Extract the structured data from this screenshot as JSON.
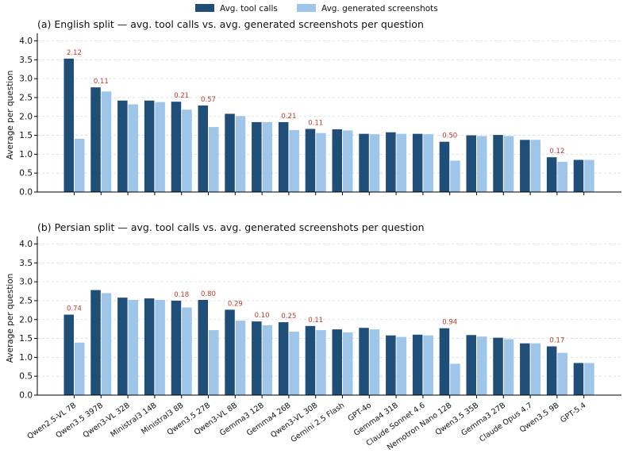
{
  "legend": [
    {
      "label": "Avg. tool calls",
      "color": "#1f4e79"
    },
    {
      "label": "Avg. generated screenshots",
      "color": "#9fc5e8"
    }
  ],
  "chart_data": [
    {
      "type": "bar",
      "title": "(a) English split — avg. tool calls vs. avg. generated screenshots per question",
      "ylabel": "Average per question",
      "ylim": [
        0,
        4.2
      ],
      "yticks": [
        "0.0",
        "0.5",
        "1.0",
        "1.5",
        "2.0",
        "2.5",
        "3.0",
        "3.5",
        "4.0"
      ],
      "grid": "horizontal dashed",
      "categories": [
        "Qwen2.5-VL 7B",
        "Qwen3.5 397B",
        "Qwen3-VL 32B",
        "Ministral3 14B",
        "Ministral3 8B",
        "Qwen3.5 27B",
        "Qwen3-VL 8B",
        "Gemma3 12B",
        "Gemma4 26B",
        "Qwen3-VL 30B",
        "Gemini 2.5 Flash",
        "GPT-4o",
        "Gemma4 31B",
        "Claude Sonnet 4.6",
        "Nemotron Nano 12B",
        "Qwen3.5 35B",
        "Gemma3 27B",
        "Claude Opus 4.7",
        "Qwen3.5 9B",
        "GPT-5.4"
      ],
      "series": [
        {
          "name": "Avg. tool calls",
          "values": [
            3.53,
            2.77,
            2.42,
            2.42,
            2.39,
            2.29,
            2.07,
            1.85,
            1.85,
            1.67,
            1.66,
            1.54,
            1.58,
            1.54,
            1.33,
            1.5,
            1.51,
            1.38,
            0.92,
            0.85
          ]
        },
        {
          "name": "Avg. generated screenshots",
          "values": [
            1.41,
            2.66,
            2.32,
            2.38,
            2.18,
            1.72,
            2.01,
            1.85,
            1.64,
            1.56,
            1.63,
            1.53,
            1.54,
            1.53,
            0.83,
            1.48,
            1.48,
            1.38,
            0.8,
            0.85
          ]
        }
      ],
      "annotations": [
        "2.12",
        "0.11",
        "",
        "",
        "0.21",
        "0.57",
        "",
        "",
        "0.21",
        "0.11",
        "",
        "",
        "",
        "",
        "0.50",
        "",
        "",
        "",
        "0.12",
        ""
      ]
    },
    {
      "type": "bar",
      "title": "(b) Persian split — avg. tool calls vs. avg. generated screenshots per question",
      "ylabel": "Average per question",
      "ylim": [
        0,
        4.2
      ],
      "yticks": [
        "0.0",
        "0.5",
        "1.0",
        "1.5",
        "2.0",
        "2.5",
        "3.0",
        "3.5",
        "4.0"
      ],
      "grid": "horizontal dashed",
      "categories": [
        "Qwen2.5-VL 7B",
        "Qwen3.5 397B",
        "Qwen3-VL 32B",
        "Ministral3 14B",
        "Ministral3 8B",
        "Qwen3.5 27B",
        "Qwen3-VL 8B",
        "Gemma3 12B",
        "Gemma4 26B",
        "Qwen3-VL 30B",
        "Gemini 2.5 Flash",
        "GPT-4o",
        "Gemma4 31B",
        "Claude Sonnet 4.6",
        "Nemotron Nano 12B",
        "Qwen3.5 35B",
        "Gemma3 27B",
        "Claude Opus 4.7",
        "Qwen3.5 9B",
        "GPT-5.4"
      ],
      "series": [
        {
          "name": "Avg. tool calls",
          "values": [
            2.13,
            2.78,
            2.58,
            2.56,
            2.5,
            2.52,
            2.26,
            1.95,
            1.93,
            1.83,
            1.74,
            1.78,
            1.58,
            1.6,
            1.77,
            1.59,
            1.52,
            1.37,
            1.29,
            0.85
          ]
        },
        {
          "name": "Avg. generated screenshots",
          "values": [
            1.39,
            2.7,
            2.52,
            2.52,
            2.32,
            1.72,
            1.97,
            1.85,
            1.68,
            1.72,
            1.66,
            1.74,
            1.54,
            1.58,
            0.83,
            1.55,
            1.48,
            1.37,
            1.12,
            0.85
          ]
        }
      ],
      "annotations": [
        "0.74",
        "",
        "",
        "",
        "0.18",
        "0.80",
        "0.29",
        "0.10",
        "0.25",
        "0.11",
        "",
        "",
        "",
        "",
        "0.94",
        "",
        "",
        "",
        "0.17",
        ""
      ]
    }
  ]
}
